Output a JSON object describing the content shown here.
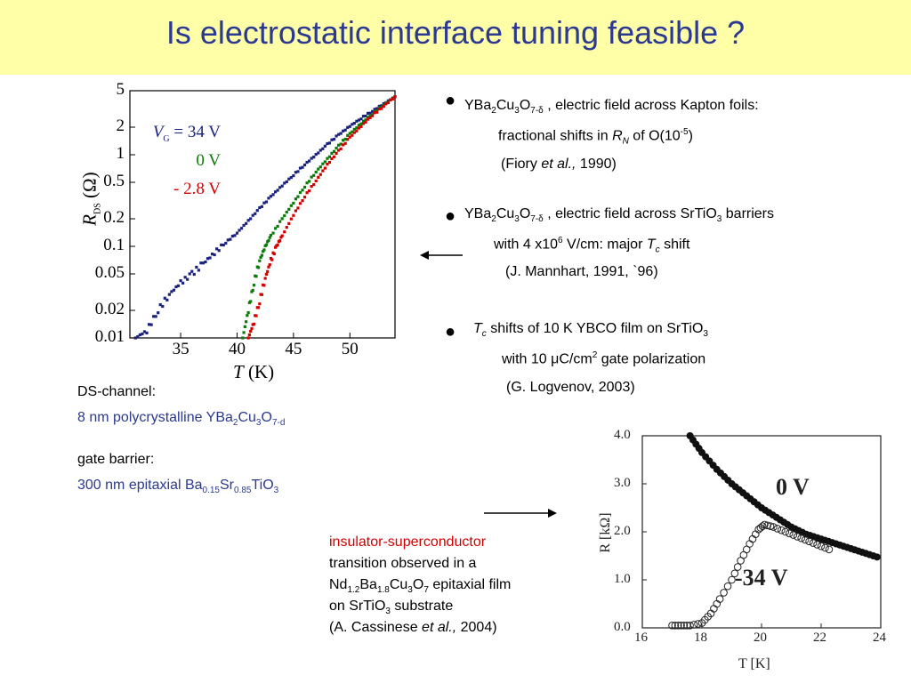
{
  "slide": {
    "title": "Is electrostatic interface tuning feasible ?"
  },
  "left_plot": {
    "y_ticks": [
      "5",
      "2",
      "1",
      "0.5",
      "0.2",
      "0.1",
      "0.05",
      "0.02",
      "0.01"
    ],
    "x_ticks": [
      "35",
      "40",
      "45",
      "50"
    ],
    "ylabel_main": "R",
    "ylabel_sub": "DS",
    "ylabel_unit": " (Ω)",
    "xlabel_main": "T",
    "xlabel_unit": " (K)",
    "legend": [
      {
        "prefix": "V",
        "sub": "G",
        "text": " = 34 V",
        "color": "#1a237e"
      },
      {
        "text": "0 V",
        "color": "#0a7a0a"
      },
      {
        "text": "- 2.8 V",
        "color": "#d40000"
      }
    ]
  },
  "chart_data": [
    {
      "type": "scatter",
      "title": "",
      "xlabel": "T (K)",
      "ylabel": "R_DS (Ω)",
      "yscale": "log",
      "xlim": [
        30.5,
        54
      ],
      "ylim": [
        0.01,
        5
      ],
      "series": [
        {
          "name": "V_G = 34 V",
          "color": "#1a237e",
          "x": [
            31,
            32,
            33,
            34,
            35,
            36,
            37,
            38,
            39,
            40,
            41,
            42,
            43,
            44,
            45,
            46,
            47,
            48,
            49,
            50,
            51,
            52,
            53,
            54
          ],
          "y": [
            0.01,
            0.012,
            0.02,
            0.03,
            0.04,
            0.05,
            0.065,
            0.085,
            0.11,
            0.14,
            0.19,
            0.26,
            0.35,
            0.46,
            0.6,
            0.78,
            1.0,
            1.3,
            1.65,
            2.05,
            2.5,
            3.0,
            3.6,
            4.3
          ]
        },
        {
          "name": "0 V",
          "color": "#0a7a0a",
          "x": [
            40.5,
            41,
            41.5,
            42,
            42.5,
            43,
            44,
            45,
            46,
            47,
            48,
            49,
            50,
            51,
            52,
            53,
            54
          ],
          "y": [
            0.01,
            0.02,
            0.04,
            0.07,
            0.1,
            0.13,
            0.2,
            0.3,
            0.45,
            0.65,
            0.9,
            1.25,
            1.7,
            2.2,
            2.8,
            3.5,
            4.3
          ]
        },
        {
          "name": "- 2.8 V",
          "color": "#d40000",
          "x": [
            41,
            41.5,
            42,
            42.5,
            43,
            43.5,
            44,
            45,
            46,
            47,
            48,
            49,
            50,
            51,
            52,
            53,
            54
          ],
          "y": [
            0.01,
            0.015,
            0.025,
            0.045,
            0.07,
            0.1,
            0.13,
            0.22,
            0.35,
            0.52,
            0.78,
            1.1,
            1.55,
            2.05,
            2.7,
            3.4,
            4.3
          ]
        }
      ]
    },
    {
      "type": "scatter",
      "title": "",
      "xlabel": "T [K]",
      "ylabel": "R [kΩ]",
      "xlim": [
        16,
        24
      ],
      "ylim": [
        0,
        4
      ],
      "series": [
        {
          "name": "0 V",
          "marker": "filled",
          "x": [
            17.6,
            18,
            18.5,
            19,
            19.5,
            20,
            20.5,
            21,
            21.5,
            22,
            22.5,
            23,
            23.5,
            24
          ],
          "y": [
            4.0,
            3.65,
            3.3,
            3.0,
            2.75,
            2.5,
            2.3,
            2.1,
            1.95,
            1.85,
            1.75,
            1.65,
            1.55,
            1.45
          ]
        },
        {
          "name": "-34 V",
          "marker": "open",
          "x": [
            17,
            17.3,
            17.6,
            18,
            18.3,
            18.6,
            19,
            19.3,
            19.6,
            19.9,
            20.1,
            20.4,
            20.8,
            21.2,
            21.6,
            22,
            22.4
          ],
          "y": [
            0.05,
            0.05,
            0.05,
            0.1,
            0.3,
            0.6,
            1.0,
            1.4,
            1.75,
            2.05,
            2.15,
            2.1,
            2.0,
            1.9,
            1.8,
            1.7,
            1.6
          ]
        }
      ]
    }
  ],
  "left_notes": {
    "ds_label": "DS-channel:",
    "ds_value_pre": "8 nm  polycrystalline YBa",
    "ds_sub1": "2",
    "ds_mid1": "Cu",
    "ds_sub2": "3",
    "ds_mid2": "O",
    "ds_sub3": "7-d",
    "gate_label": "gate barrier:",
    "gate_value_pre": "300 nm epitaxial Ba",
    "gate_sub1": "0.15",
    "gate_mid1": "Sr",
    "gate_sub2": "0.85",
    "gate_mid2": "TiO",
    "gate_sub3": "3"
  },
  "bullets": {
    "b1": {
      "line1_pre": "YBa",
      "s1": "2",
      "m1": "Cu",
      "s2": "3",
      "m2": "O",
      "s3": "7-δ",
      "line1_post": " , electric field across Kapton foils:",
      "line2_pre": "fractional shifts in ",
      "line2_ital": "R",
      "line2_sub": "N",
      "line2_mid": " of O(10",
      "line2_sup": "-5",
      "line2_post": ")",
      "line3_pre": "(Fiory ",
      "line3_ital": "et al.,",
      "line3_post": " 1990)"
    },
    "b2": {
      "line1_pre": "YBa",
      "s1": "2",
      "m1": "Cu",
      "s2": "3",
      "m2": "O",
      "s3": "7-δ",
      "line1_mid": " , electric field across SrTiO",
      "s4": "3",
      "line1_post": " barriers",
      "line2_pre": "with 4 x10",
      "line2_sup": "6",
      "line2_mid": " V/cm: major ",
      "line2_ital": "T",
      "line2_sub": "c",
      "line2_post": " shift",
      "line3": "(J. Mannhart, 1991, `96)"
    },
    "b3": {
      "line1_ital": "T",
      "line1_sub": "c",
      "line1_mid": " shifts of 10 K  YBCO film on SrTiO",
      "line1_sub2": "3",
      "line2_pre": "with 10 ",
      "line2_mu": "μ",
      "line2_mid": "C/cm",
      "line2_sup": "2",
      "line2_post": " gate polarization",
      "line3": "(G. Logvenov, 2003)"
    }
  },
  "bottom_note": {
    "red": "insulator-superconductor",
    "l2": "transition observed in a",
    "l3_a": "Nd",
    "l3_s1": "1.2",
    "l3_b": "Ba",
    "l3_s2": "1.8",
    "l3_c": "Cu",
    "l3_s3": "3",
    "l3_d": "O",
    "l3_s4": "7",
    "l3_e": " epitaxial film",
    "l4_a": "on SrTiO",
    "l4_s": "3",
    "l4_b": " substrate",
    "l5_a": "(A. Cassinese ",
    "l5_i": "et al.,",
    "l5_b": " 2004)"
  },
  "right_plot": {
    "y_ticks": [
      "4.0",
      "3.0",
      "2.0",
      "1.0",
      "0.0"
    ],
    "x_ticks": [
      "16",
      "18",
      "20",
      "22",
      "24"
    ],
    "ylabel": "R   [kΩ]",
    "xlabel": "T [K]",
    "label_0v": "0 V",
    "label_34v": "-34 V"
  }
}
